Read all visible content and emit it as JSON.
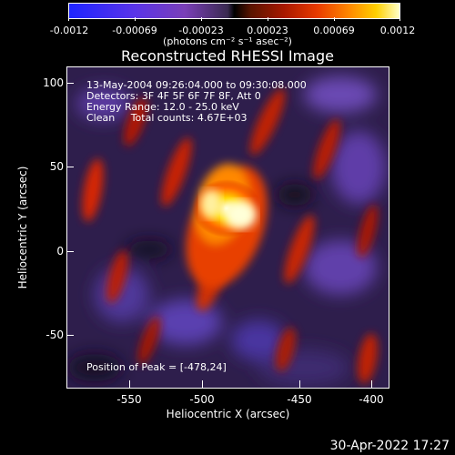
{
  "colorbar": {
    "ticks": [
      "-0.0012",
      "-0.00069",
      "-0.00023",
      "0.00023",
      "0.00069",
      "0.0012"
    ],
    "units": "(photons cm⁻² s⁻¹ asec⁻²)"
  },
  "title": "Reconstructed RHESSI Image",
  "info": {
    "time_range": "13-May-2004 09:26:04.000 to 09:30:08.000",
    "detectors": "Detectors: 3F 4F 5F 6F 7F 8F, Att 0",
    "energy": "Energy Range: 12.0 - 25.0 keV",
    "clean": "Clean     Total counts: 4.67E+03",
    "peak": "Position of Peak = [-478,24]"
  },
  "axes": {
    "xlabel": "Heliocentric X (arcsec)",
    "ylabel": "Heliocentric Y (arcsec)",
    "xticks": [
      "-550",
      "-500",
      "-450",
      "-400"
    ],
    "yticks": [
      "100",
      "50",
      "0",
      "-50"
    ]
  },
  "timestamp": "30-Apr-2022 17:27"
}
